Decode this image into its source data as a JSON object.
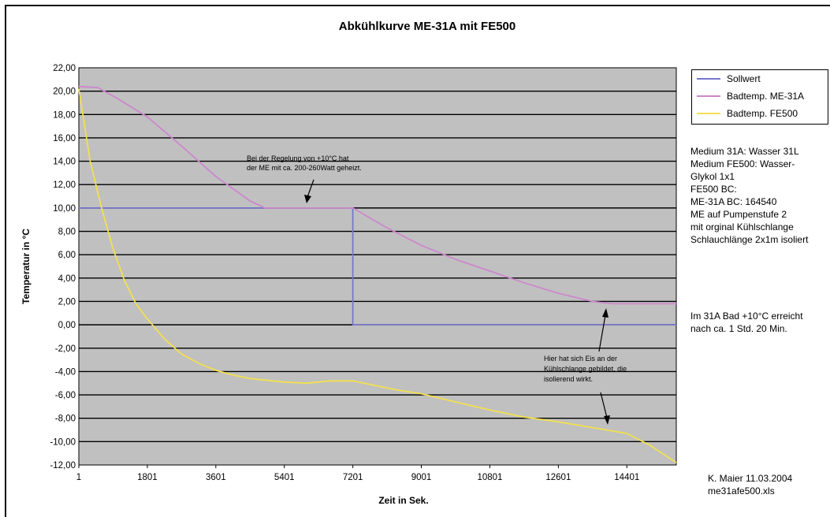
{
  "colors": {
    "plot_bg": "#c0c0c0",
    "sollwert": "#7777cc",
    "me31a": "#cc88cc",
    "fe500": "#f2e050",
    "gridline": "#000000"
  },
  "chart_data": {
    "type": "line",
    "title": "Abkühlkurve ME-31A mit FE500",
    "xlabel": "Zeit in Sek.",
    "ylabel": "Temperatur in °C",
    "xlim": [
      1,
      15700
    ],
    "ylim": [
      -12,
      22
    ],
    "x_ticks": [
      "1",
      "1801",
      "3601",
      "5401",
      "7201",
      "9001",
      "10801",
      "12601",
      "14401"
    ],
    "y_ticks": [
      "22,00",
      "20,00",
      "18,00",
      "16,00",
      "14,00",
      "12,00",
      "10,00",
      "8,00",
      "6,00",
      "4,00",
      "2,00",
      "0,00",
      "-2,00",
      "-4,00",
      "-6,00",
      "-8,00",
      "-10,00",
      "-12,00"
    ],
    "grid": "horizontal",
    "legend_position": "right",
    "series": [
      {
        "name": "Sollwert",
        "x": [
          1,
          7201,
          7201,
          15700
        ],
        "y": [
          10,
          10,
          0,
          0
        ]
      },
      {
        "name": "Badtemp. ME-31A",
        "x": [
          1,
          500,
          1000,
          1801,
          2700,
          3601,
          4500,
          4900,
          5401,
          6300,
          7201,
          8100,
          9001,
          9900,
          10801,
          11700,
          12601,
          13500,
          14000,
          14401,
          15700
        ],
        "y": [
          20.4,
          20.3,
          19.4,
          17.8,
          15.3,
          12.7,
          10.6,
          10.0,
          10.0,
          10.0,
          10.0,
          8.3,
          6.8,
          5.6,
          4.6,
          3.6,
          2.7,
          2.0,
          1.8,
          1.8,
          1.8
        ]
      },
      {
        "name": "Badtemp. FE500",
        "x": [
          1,
          300,
          600,
          900,
          1200,
          1500,
          1801,
          2250,
          2700,
          3150,
          3601,
          4050,
          4500,
          5401,
          6000,
          6600,
          7201,
          7800,
          8400,
          9001,
          9900,
          10801,
          11700,
          12601,
          13500,
          14401,
          15000,
          15700
        ],
        "y": [
          20.2,
          14.0,
          10.0,
          6.5,
          3.8,
          1.8,
          0.5,
          -1.2,
          -2.5,
          -3.3,
          -3.9,
          -4.3,
          -4.6,
          -4.9,
          -5.0,
          -4.8,
          -4.8,
          -5.2,
          -5.6,
          -5.9,
          -6.6,
          -7.3,
          -7.9,
          -8.3,
          -8.8,
          -9.3,
          -10.3,
          -11.8
        ]
      }
    ],
    "annotations": [
      [
        "Bei der Regelung von +10°C hat",
        "der ME mit ca. 200-260Watt geheizt."
      ],
      [
        "Hier hat sich Eis an der",
        "Kühlschlange gebildet, die",
        "isolierend wirkt."
      ]
    ]
  },
  "side_notes": {
    "medium": [
      "Medium 31A: Wasser 31L",
      "Medium FE500: Wasser-",
      "Glykol 1x1",
      "FE500 BC:",
      "ME-31A BC: 164540",
      "ME auf Pumpenstufe 2",
      "mit orginal Kühlschlange",
      "Schlauchlänge 2x1m isoliert"
    ],
    "result": [
      "Im 31A Bad +10°C erreicht",
      "nach ca. 1 Std. 20 Min."
    ],
    "author": [
      "K. Maier 11.03.2004",
      "me31afe500.xls"
    ]
  }
}
